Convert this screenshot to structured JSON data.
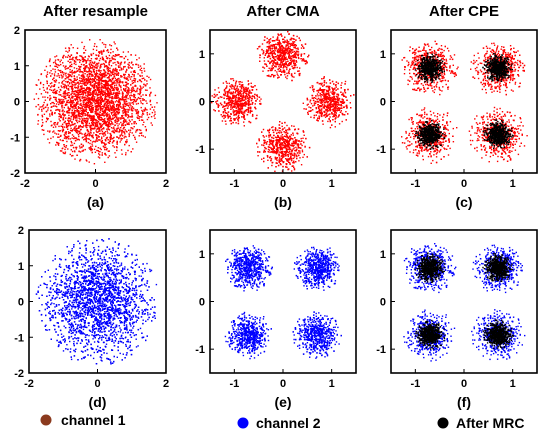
{
  "chart_data": [
    {
      "type": "scatter",
      "id": "a",
      "title": "After resample",
      "sublabel": "(a)",
      "xlim": [
        -2,
        2
      ],
      "ylim": [
        -2,
        2
      ],
      "xticks": [
        -2,
        0,
        2
      ],
      "yticks": [
        -2,
        -1,
        0,
        1,
        2
      ],
      "series": [
        {
          "name": "channel 1",
          "color": "#ff0000",
          "centers": [
            [
              0,
              0
            ]
          ],
          "spread": 0.75,
          "radius": 1.75,
          "count": 3400
        }
      ]
    },
    {
      "type": "scatter",
      "id": "b",
      "title": "After CMA",
      "sublabel": "(b)",
      "xlim": [
        -1.5,
        1.5
      ],
      "ylim": [
        -1.5,
        1.5
      ],
      "xticks": [
        -1,
        0,
        1
      ],
      "yticks": [
        -1,
        0,
        1
      ],
      "series": [
        {
          "name": "channel 1",
          "color": "#ff0000",
          "centers": [
            [
              0,
              0.95
            ],
            [
              -0.95,
              0
            ],
            [
              0.95,
              0
            ],
            [
              0,
              -0.95
            ]
          ],
          "spread": 0.22,
          "radius": 0.55,
          "count": 3200
        }
      ]
    },
    {
      "type": "scatter",
      "id": "c",
      "title": "After CPE",
      "sublabel": "(c)",
      "xlim": [
        -1.5,
        1.5
      ],
      "ylim": [
        -1.5,
        1.5
      ],
      "xticks": [
        -1,
        0,
        1
      ],
      "yticks": [
        -1,
        0,
        1
      ],
      "series": [
        {
          "name": "channel 1",
          "color": "#ff0000",
          "centers": [
            [
              -0.7,
              0.7
            ],
            [
              0.7,
              0.7
            ],
            [
              -0.7,
              -0.7
            ],
            [
              0.7,
              -0.7
            ]
          ],
          "spread": 0.24,
          "radius": 0.6,
          "count": 2400
        },
        {
          "name": "After MRC",
          "color": "#000000",
          "centers": [
            [
              -0.7,
              0.7
            ],
            [
              0.7,
              0.7
            ],
            [
              -0.7,
              -0.7
            ],
            [
              0.7,
              -0.7
            ]
          ],
          "spread": 0.12,
          "radius": 0.32,
          "count": 2800
        }
      ]
    },
    {
      "type": "scatter",
      "id": "d",
      "sublabel": "(d)",
      "xlim": [
        -2,
        2
      ],
      "ylim": [
        -2,
        2
      ],
      "xticks": [
        -2,
        0,
        2
      ],
      "yticks": [
        -2,
        -1,
        0,
        1,
        2
      ],
      "series": [
        {
          "name": "channel 2",
          "color": "#0000ff",
          "centers": [
            [
              0,
              0
            ]
          ],
          "spread": 0.75,
          "radius": 1.8,
          "count": 3400
        }
      ]
    },
    {
      "type": "scatter",
      "id": "e",
      "sublabel": "(e)",
      "xlim": [
        -1.5,
        1.5
      ],
      "ylim": [
        -1.5,
        1.5
      ],
      "xticks": [
        -1,
        0,
        1
      ],
      "yticks": [
        -1,
        0,
        1
      ],
      "series": [
        {
          "name": "channel 2",
          "color": "#0000ff",
          "centers": [
            [
              -0.7,
              0.7
            ],
            [
              0.7,
              0.7
            ],
            [
              -0.7,
              -0.7
            ],
            [
              0.7,
              -0.7
            ]
          ],
          "spread": 0.2,
          "radius": 0.5,
          "count": 3000
        }
      ]
    },
    {
      "type": "scatter",
      "id": "f",
      "sublabel": "(f)",
      "xlim": [
        -1.5,
        1.5
      ],
      "ylim": [
        -1.5,
        1.5
      ],
      "xticks": [
        -1,
        0,
        1
      ],
      "yticks": [
        -1,
        0,
        1
      ],
      "series": [
        {
          "name": "channel 2",
          "color": "#0000ff",
          "centers": [
            [
              -0.7,
              0.7
            ],
            [
              0.7,
              0.7
            ],
            [
              -0.7,
              -0.7
            ],
            [
              0.7,
              -0.7
            ]
          ],
          "spread": 0.22,
          "radius": 0.55,
          "count": 2200
        },
        {
          "name": "After MRC",
          "color": "#000000",
          "centers": [
            [
              -0.7,
              0.7
            ],
            [
              0.7,
              0.7
            ],
            [
              -0.7,
              -0.7
            ],
            [
              0.7,
              -0.7
            ]
          ],
          "spread": 0.12,
          "radius": 0.32,
          "count": 2800
        }
      ]
    }
  ],
  "legend": {
    "placement": "bottom",
    "items": [
      {
        "label": "channel 1",
        "color": "#8b3a1e"
      },
      {
        "label": "channel 2",
        "color": "#0000ff"
      },
      {
        "label": "After MRC",
        "color": "#000000"
      }
    ]
  }
}
